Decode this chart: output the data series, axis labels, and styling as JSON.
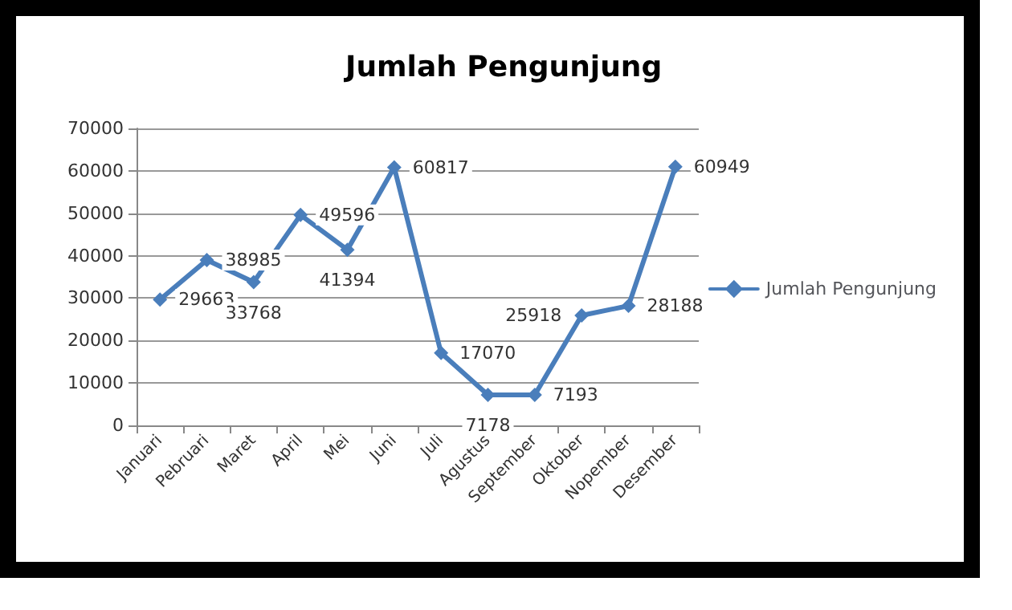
{
  "chart_data": {
    "type": "line",
    "title": "Jumlah Pengunjung",
    "categories": [
      "Januari",
      "Pebruari",
      "Maret",
      "April",
      "Mei",
      "Juni",
      "Juli",
      "Agustus",
      "September",
      "Oktober",
      "Nopember",
      "Desember"
    ],
    "series": [
      {
        "name": "Jumlah Pengunjung",
        "color": "#4a7ebb",
        "values": [
          29663,
          38985,
          33768,
          49596,
          41394,
          60817,
          17070,
          7178,
          7193,
          25918,
          28188,
          60949
        ]
      }
    ],
    "ylim": [
      0,
      70000
    ],
    "yticks": [
      0,
      10000,
      20000,
      30000,
      40000,
      50000,
      60000,
      70000
    ],
    "grid": "y",
    "legend": "right",
    "marker": "diamond",
    "line_style": "solid",
    "data_labels": true
  }
}
